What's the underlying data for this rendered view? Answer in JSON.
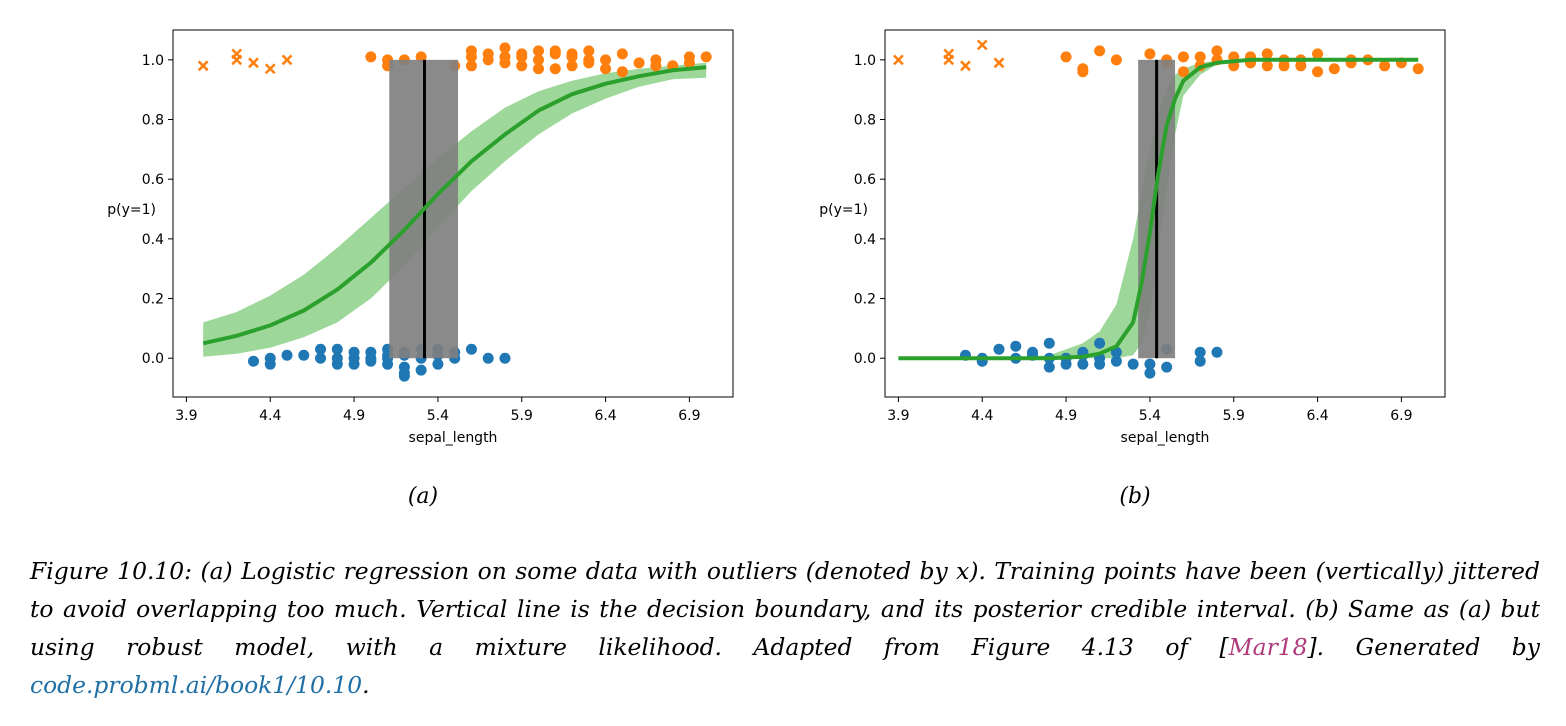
{
  "chart_data": [
    {
      "type": "scatter",
      "panel_label": "(a)",
      "xlabel": "sepal_length",
      "ylabel": "p(y=1)",
      "xlim": [
        3.82,
        7.16
      ],
      "ylim": [
        -0.13,
        1.1
      ],
      "xticks": [
        "3.9",
        "4.4",
        "4.9",
        "5.4",
        "5.9",
        "6.4",
        "6.9"
      ],
      "yticks": [
        "0.0",
        "0.2",
        "0.4",
        "0.6",
        "0.8",
        "1.0"
      ],
      "grid": false,
      "colors": {
        "class0": "#1f77b4",
        "class1": "#ff7f0e",
        "fit": "#2ca02c",
        "band": "#98d594",
        "boundary": "#000000",
        "boundary_band": "#808080"
      },
      "decision_boundary": {
        "x": 5.32,
        "hdi": [
          5.11,
          5.52
        ]
      },
      "curve": {
        "x": [
          4.0,
          4.2,
          4.4,
          4.6,
          4.8,
          5.0,
          5.2,
          5.4,
          5.6,
          5.8,
          6.0,
          6.2,
          6.4,
          6.6,
          6.8,
          7.0
        ],
        "mean": [
          0.05,
          0.075,
          0.11,
          0.16,
          0.23,
          0.32,
          0.43,
          0.55,
          0.66,
          0.75,
          0.83,
          0.885,
          0.92,
          0.945,
          0.965,
          0.975
        ],
        "lower": [
          0.005,
          0.015,
          0.035,
          0.07,
          0.12,
          0.2,
          0.31,
          0.44,
          0.56,
          0.66,
          0.75,
          0.82,
          0.87,
          0.91,
          0.935,
          0.94
        ],
        "upper": [
          0.12,
          0.155,
          0.21,
          0.28,
          0.37,
          0.47,
          0.57,
          0.67,
          0.76,
          0.84,
          0.895,
          0.93,
          0.955,
          0.97,
          0.98,
          0.99
        ]
      },
      "points_class0": [
        [
          4.3,
          -0.01
        ],
        [
          4.4,
          0.0
        ],
        [
          4.4,
          -0.02
        ],
        [
          4.5,
          0.01
        ],
        [
          4.6,
          0.01
        ],
        [
          4.7,
          0.0
        ],
        [
          4.7,
          0.03
        ],
        [
          4.8,
          0.03
        ],
        [
          4.8,
          0.0
        ],
        [
          4.8,
          -0.02
        ],
        [
          4.9,
          0.02
        ],
        [
          4.9,
          0.0
        ],
        [
          4.9,
          -0.02
        ],
        [
          5.0,
          0.02
        ],
        [
          5.0,
          -0.01
        ],
        [
          5.0,
          0.0
        ],
        [
          5.1,
          0.01
        ],
        [
          5.1,
          -0.02
        ],
        [
          5.1,
          0.03
        ],
        [
          5.1,
          0.0
        ],
        [
          5.2,
          0.02
        ],
        [
          5.2,
          -0.03
        ],
        [
          5.2,
          0.01
        ],
        [
          5.2,
          -0.06
        ],
        [
          5.3,
          0.03
        ],
        [
          5.3,
          0.0
        ],
        [
          5.4,
          0.01
        ],
        [
          5.4,
          0.03
        ],
        [
          5.4,
          -0.02
        ],
        [
          5.5,
          0.0
        ],
        [
          5.5,
          0.02
        ],
        [
          5.7,
          0.0
        ],
        [
          5.8,
          0.0
        ],
        [
          5.6,
          0.03
        ],
        [
          5.3,
          -0.04
        ],
        [
          5.2,
          -0.05
        ]
      ],
      "points_class1": [
        [
          5.0,
          1.01
        ],
        [
          5.1,
          0.98
        ],
        [
          5.1,
          1.0
        ],
        [
          5.2,
          1.0
        ],
        [
          5.3,
          1.01
        ],
        [
          5.5,
          0.98
        ],
        [
          5.6,
          1.03
        ],
        [
          5.6,
          0.98
        ],
        [
          5.6,
          1.01
        ],
        [
          5.7,
          1.02
        ],
        [
          5.7,
          1.0
        ],
        [
          5.8,
          1.04
        ],
        [
          5.8,
          1.01
        ],
        [
          5.8,
          0.99
        ],
        [
          5.9,
          1.01
        ],
        [
          5.9,
          0.98
        ],
        [
          6.0,
          1.03
        ],
        [
          6.0,
          1.0
        ],
        [
          6.1,
          1.02
        ],
        [
          6.1,
          0.97
        ],
        [
          6.2,
          1.01
        ],
        [
          6.2,
          1.02
        ],
        [
          6.3,
          0.99
        ],
        [
          6.3,
          1.0
        ],
        [
          6.4,
          1.0
        ],
        [
          6.5,
          1.02
        ],
        [
          6.6,
          0.99
        ],
        [
          6.7,
          1.0
        ],
        [
          6.8,
          0.98
        ],
        [
          6.9,
          0.99
        ],
        [
          7.0,
          1.01
        ],
        [
          6.3,
          1.03
        ],
        [
          6.1,
          1.03
        ],
        [
          5.9,
          1.02
        ],
        [
          6.0,
          0.97
        ],
        [
          6.4,
          0.97
        ],
        [
          6.7,
          0.98
        ],
        [
          6.9,
          1.01
        ],
        [
          6.2,
          0.98
        ],
        [
          6.5,
          0.96
        ]
      ],
      "outliers": [
        [
          4.0,
          0.98
        ],
        [
          4.2,
          1.02
        ],
        [
          4.2,
          1.0
        ],
        [
          4.3,
          0.99
        ],
        [
          4.4,
          0.97
        ],
        [
          4.5,
          1.0
        ]
      ]
    },
    {
      "type": "scatter",
      "panel_label": "(b)",
      "xlabel": "sepal_length",
      "ylabel": "p(y=1)",
      "xlim": [
        3.82,
        7.16
      ],
      "ylim": [
        -0.13,
        1.1
      ],
      "xticks": [
        "3.9",
        "4.4",
        "4.9",
        "5.4",
        "5.9",
        "6.4",
        "6.9"
      ],
      "yticks": [
        "0.0",
        "0.2",
        "0.4",
        "0.6",
        "0.8",
        "1.0"
      ],
      "grid": false,
      "colors": {
        "class0": "#1f77b4",
        "class1": "#ff7f0e",
        "fit": "#2ca02c",
        "band": "#98d594",
        "boundary": "#000000",
        "boundary_band": "#808080"
      },
      "decision_boundary": {
        "x": 5.44,
        "hdi": [
          5.33,
          5.55
        ]
      },
      "curve": {
        "x": [
          3.9,
          4.2,
          4.5,
          4.8,
          5.0,
          5.1,
          5.2,
          5.3,
          5.35,
          5.4,
          5.45,
          5.5,
          5.55,
          5.6,
          5.7,
          5.8,
          5.9,
          6.0,
          6.5,
          7.0
        ],
        "mean": [
          0.0,
          0.0,
          0.0,
          0.0,
          0.005,
          0.015,
          0.04,
          0.12,
          0.25,
          0.42,
          0.62,
          0.78,
          0.87,
          0.93,
          0.975,
          0.99,
          0.995,
          1.0,
          1.0,
          1.0
        ],
        "lower": [
          0.0,
          0.0,
          0.0,
          0.0,
          0.0,
          0.0,
          0.0,
          0.01,
          0.05,
          0.15,
          0.35,
          0.58,
          0.75,
          0.88,
          0.95,
          0.985,
          0.995,
          1.0,
          1.0,
          1.0
        ],
        "upper": [
          0.0,
          0.0,
          0.0,
          0.01,
          0.05,
          0.09,
          0.18,
          0.4,
          0.55,
          0.7,
          0.82,
          0.9,
          0.95,
          0.97,
          0.99,
          0.997,
          1.0,
          1.0,
          1.0,
          1.0
        ]
      },
      "points_class0": [
        [
          4.3,
          0.01
        ],
        [
          4.4,
          0.0
        ],
        [
          4.4,
          -0.01
        ],
        [
          4.5,
          0.03
        ],
        [
          4.6,
          0.04
        ],
        [
          4.6,
          0.0
        ],
        [
          4.7,
          0.02
        ],
        [
          4.7,
          0.01
        ],
        [
          4.8,
          0.05
        ],
        [
          4.8,
          -0.03
        ],
        [
          4.8,
          0.0
        ],
        [
          4.9,
          -0.02
        ],
        [
          4.9,
          0.0
        ],
        [
          5.0,
          0.01
        ],
        [
          5.0,
          -0.02
        ],
        [
          5.0,
          0.02
        ],
        [
          5.1,
          0.05
        ],
        [
          5.1,
          0.0
        ],
        [
          5.2,
          0.02
        ],
        [
          5.2,
          -0.01
        ],
        [
          5.3,
          -0.02
        ],
        [
          5.4,
          -0.02
        ],
        [
          5.4,
          -0.05
        ],
        [
          5.5,
          0.03
        ],
        [
          5.7,
          0.02
        ],
        [
          5.7,
          -0.01
        ],
        [
          5.8,
          0.02
        ],
        [
          5.1,
          -0.02
        ],
        [
          5.5,
          -0.03
        ]
      ],
      "points_class1": [
        [
          4.9,
          1.01
        ],
        [
          5.0,
          0.97
        ],
        [
          5.0,
          0.96
        ],
        [
          5.1,
          1.03
        ],
        [
          5.2,
          1.0
        ],
        [
          5.4,
          1.02
        ],
        [
          5.5,
          0.99
        ],
        [
          5.6,
          1.01
        ],
        [
          5.6,
          0.96
        ],
        [
          5.7,
          1.01
        ],
        [
          5.7,
          0.98
        ],
        [
          5.8,
          1.03
        ],
        [
          5.8,
          1.0
        ],
        [
          5.9,
          1.01
        ],
        [
          5.9,
          0.98
        ],
        [
          6.0,
          0.99
        ],
        [
          6.1,
          1.02
        ],
        [
          6.1,
          0.98
        ],
        [
          6.2,
          0.98
        ],
        [
          6.3,
          1.0
        ],
        [
          6.3,
          0.98
        ],
        [
          6.4,
          1.02
        ],
        [
          6.4,
          0.96
        ],
        [
          6.5,
          0.97
        ],
        [
          6.6,
          0.99
        ],
        [
          6.7,
          1.0
        ],
        [
          6.8,
          0.98
        ],
        [
          6.9,
          0.99
        ],
        [
          7.0,
          0.97
        ],
        [
          6.2,
          1.0
        ],
        [
          6.0,
          1.01
        ],
        [
          6.6,
          1.0
        ],
        [
          5.5,
          1.0
        ]
      ],
      "outliers": [
        [
          3.9,
          1.0
        ],
        [
          4.2,
          1.02
        ],
        [
          4.2,
          1.0
        ],
        [
          4.3,
          0.98
        ],
        [
          4.4,
          1.05
        ],
        [
          4.5,
          0.99
        ]
      ]
    }
  ],
  "caption": {
    "part1": "Figure 10.10: (a) Logistic regression on some data with outliers (denoted by x). Training points have been (vertically) jittered to avoid overlapping too much. Vertical line is the decision boundary, and its posterior credible interval. (b) Same as (a) but using robust model, with a mixture likelihood. Adapted from Figure 4.13 of [",
    "citation": "Mar18",
    "part2": "]. Generated by ",
    "link": "code.probml.ai/book1/10.10",
    "part3": "."
  }
}
